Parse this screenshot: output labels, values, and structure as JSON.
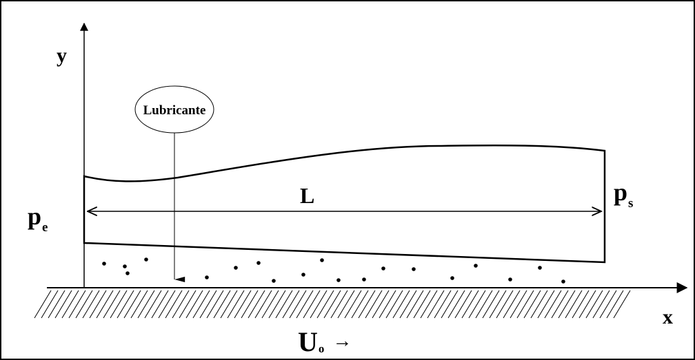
{
  "labels": {
    "y_axis": "y",
    "x_axis": "x",
    "inlet_pressure": "p",
    "inlet_pressure_sub": "e",
    "outlet_pressure": "p",
    "outlet_pressure_sub": "s",
    "length": "L",
    "lubricant": "Lubricante",
    "velocity": "U",
    "velocity_sub": "o",
    "velocity_arrow": "→"
  }
}
